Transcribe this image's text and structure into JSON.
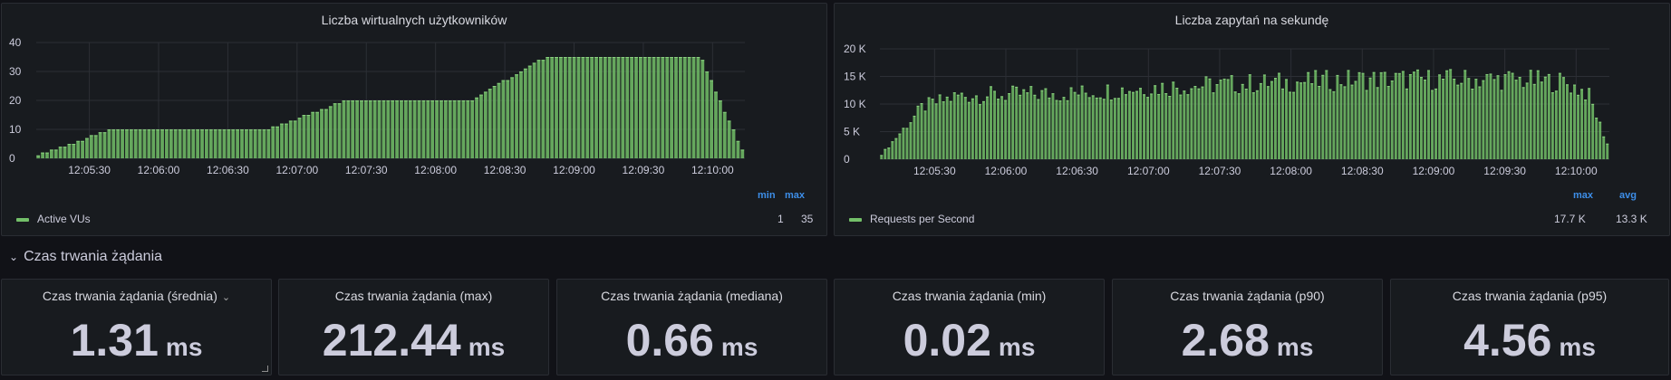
{
  "vus_panel": {
    "title": "Liczba wirtualnych użytkowników",
    "legend": {
      "series_name": "Active VUs",
      "headers": [
        "min",
        "max"
      ],
      "values": [
        "1",
        "35"
      ]
    }
  },
  "rps_panel": {
    "title": "Liczba zapytań na sekundę",
    "legend": {
      "series_name": "Requests per Second",
      "headers": [
        "max",
        "avg"
      ],
      "values": [
        "17.7 K",
        "13.3 K"
      ]
    }
  },
  "row": {
    "title": "Czas trwania żądania",
    "chevron_icon": "chevron-down-icon"
  },
  "stats": [
    {
      "title": "Czas trwania żądania (średnia)",
      "value": "1.31",
      "unit": "ms",
      "has_menu": true
    },
    {
      "title": "Czas trwania żądania (max)",
      "value": "212.44",
      "unit": "ms"
    },
    {
      "title": "Czas trwania żądania (mediana)",
      "value": "0.66",
      "unit": "ms"
    },
    {
      "title": "Czas trwania żądania (min)",
      "value": "0.02",
      "unit": "ms"
    },
    {
      "title": "Czas trwania żądania (p90)",
      "value": "2.68",
      "unit": "ms"
    },
    {
      "title": "Czas trwania żądania (p95)",
      "value": "4.56",
      "unit": "ms"
    }
  ],
  "colors": {
    "series": "#73bf69",
    "accent": "#3d8ee8",
    "panel_bg": "#181b1f",
    "page_bg": "#111217"
  },
  "chart_data": [
    {
      "type": "bar",
      "title": "Liczba wirtualnych użytkowników",
      "xlabel": "",
      "ylabel": "",
      "ylim": [
        0,
        40
      ],
      "y_ticks": [
        "0",
        "10",
        "20",
        "30",
        "40"
      ],
      "x_ticks": [
        "12:05:30",
        "12:06:00",
        "12:06:30",
        "12:07:00",
        "12:07:30",
        "12:08:00",
        "12:08:30",
        "12:09:00",
        "12:09:30",
        "12:10:00"
      ],
      "x_start": "12:05:07",
      "x_end": "12:10:14",
      "legend_position": "bottom-left",
      "grid": true,
      "series": [
        {
          "name": "Active VUs",
          "profile": [
            [
              "12:05:07",
              1
            ],
            [
              "12:05:40",
              10
            ],
            [
              "12:06:48",
              10
            ],
            [
              "12:07:21",
              20
            ],
            [
              "12:08:15",
              20
            ],
            [
              "12:08:48",
              35
            ],
            [
              "12:09:55",
              35
            ],
            [
              "12:10:14",
              1
            ]
          ]
        }
      ]
    },
    {
      "type": "bar",
      "title": "Liczba zapytań na sekundę",
      "xlabel": "",
      "ylabel": "",
      "ylim": [
        0,
        20000
      ],
      "y_ticks": [
        "0",
        "5 K",
        "10 K",
        "15 K",
        "20 K"
      ],
      "x_ticks": [
        "12:05:30",
        "12:06:00",
        "12:06:30",
        "12:07:00",
        "12:07:30",
        "12:08:00",
        "12:08:30",
        "12:09:00",
        "12:09:30",
        "12:10:00"
      ],
      "x_start": "12:05:07",
      "x_end": "12:10:14",
      "legend_position": "bottom-left",
      "grid": true,
      "series": [
        {
          "name": "Requests per Second",
          "max": 17700,
          "avg": 13300,
          "profile": [
            [
              "12:05:07",
              500
            ],
            [
              "12:05:25",
              9500
            ],
            [
              "12:05:40",
              11500
            ],
            [
              "12:06:30",
              12000
            ],
            [
              "12:07:00",
              13000
            ],
            [
              "12:07:30",
              13500
            ],
            [
              "12:08:00",
              14000
            ],
            [
              "12:08:30",
              14500
            ],
            [
              "12:09:00",
              14500
            ],
            [
              "12:09:30",
              14500
            ],
            [
              "12:09:55",
              14000
            ],
            [
              "12:10:05",
              12000
            ],
            [
              "12:10:14",
              2000
            ]
          ]
        }
      ]
    }
  ]
}
